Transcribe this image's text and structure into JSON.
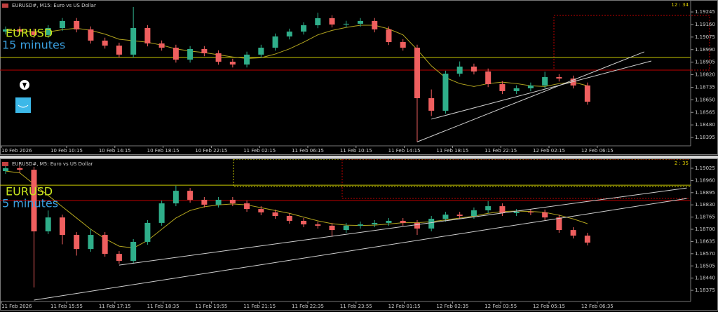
{
  "chart_data": [
    {
      "type": "candlestick",
      "title": "EURUSD#, M15: Euro vs US Dollar",
      "clock": "12 : 34",
      "symbol": "EURUSD",
      "period": "15 minutes",
      "ylim": [
        1.18343,
        1.19288
      ],
      "yticks": [
        1.19245,
        {
          "value": 1.1916,
          "label": "1.19160"
        },
        1.19075,
        {
          "value": 1.1899,
          "label": "1.18990"
        },
        1.18905,
        {
          "value": 1.1882,
          "label": "1.18820"
        },
        1.18735,
        {
          "value": 1.1865,
          "label": "1.18650"
        },
        1.18565,
        {
          "value": 1.1848,
          "label": "1.18480"
        },
        1.18395
      ],
      "time_labels": [
        "10 Feb 2026",
        "10 Feb 10:15",
        "10 Feb 14:15",
        "10 Feb 18:15",
        "10 Feb 22:15",
        "11 Feb 02:15",
        "11 Feb 06:15",
        "11 Feb 10:15",
        "11 Feb 14:15",
        "11 Feb 18:15",
        "11 Feb 22:15",
        "12 Feb 02:15",
        "12 Feb 06:15"
      ],
      "up_color": "#2fae8a",
      "down_color": "#ef5f5f",
      "ma_color": "#b3a51e",
      "ohlc": [
        [
          1.19112,
          1.19147,
          1.19092,
          1.19127
        ],
        [
          1.19127,
          1.19147,
          1.19092,
          1.19112
        ],
        [
          1.19112,
          1.19132,
          1.19069,
          1.19089
        ],
        [
          1.19089,
          1.19156,
          1.19069,
          1.19136
        ],
        [
          1.19136,
          1.19204,
          1.19116,
          1.19184
        ],
        [
          1.19184,
          1.19204,
          1.19107,
          1.19127
        ],
        [
          1.19127,
          1.19147,
          1.19031,
          1.19051
        ],
        [
          1.19051,
          1.19071,
          1.18997,
          1.19017
        ],
        [
          1.19017,
          1.19037,
          1.18936,
          1.18956
        ],
        [
          1.18956,
          1.19279,
          1.18936,
          1.19136
        ],
        [
          1.19136,
          1.19156,
          1.19012,
          1.19032
        ],
        [
          1.19032,
          1.19052,
          1.18983,
          1.19003
        ],
        [
          1.19003,
          1.19023,
          1.18902,
          1.18922
        ],
        [
          1.18922,
          1.19014,
          1.18902,
          1.18994
        ],
        [
          1.18994,
          1.19014,
          1.18945,
          1.18965
        ],
        [
          1.18965,
          1.18985,
          1.18888,
          1.18908
        ],
        [
          1.18908,
          1.18928,
          1.18869,
          1.18889
        ],
        [
          1.18889,
          1.18976,
          1.18869,
          1.18956
        ],
        [
          1.18956,
          1.19023,
          1.18936,
          1.19003
        ],
        [
          1.19003,
          1.19099,
          1.18983,
          1.19079
        ],
        [
          1.19079,
          1.19132,
          1.19059,
          1.19112
        ],
        [
          1.19112,
          1.19175,
          1.19092,
          1.19155
        ],
        [
          1.19155,
          1.1924,
          1.19135,
          1.19203
        ],
        [
          1.19203,
          1.19223,
          1.1914,
          1.1916
        ],
        [
          1.1916,
          1.19185,
          1.1914,
          1.19165
        ],
        [
          1.19165,
          1.19204,
          1.19145,
          1.19184
        ],
        [
          1.19184,
          1.19204,
          1.19107,
          1.19127
        ],
        [
          1.19127,
          1.19147,
          1.19021,
          1.19041
        ],
        [
          1.19041,
          1.19061,
          1.18983,
          1.19003
        ],
        [
          1.19003,
          1.19023,
          1.18365,
          1.18661
        ],
        [
          1.18661,
          1.1872,
          1.1854,
          1.18576
        ],
        [
          1.18576,
          1.18847,
          1.18556,
          1.18827
        ],
        [
          1.18827,
          1.1891,
          1.18807,
          1.18875
        ],
        [
          1.18875,
          1.18895,
          1.18822,
          1.18842
        ],
        [
          1.18842,
          1.18862,
          1.18736,
          1.18756
        ],
        [
          1.18756,
          1.18776,
          1.18689,
          1.18709
        ],
        [
          1.18709,
          1.18748,
          1.18689,
          1.18728
        ],
        [
          1.18728,
          1.18767,
          1.18708,
          1.18747
        ],
        [
          1.18747,
          1.1884,
          1.18727,
          1.18804
        ],
        [
          1.18804,
          1.18824,
          1.18774,
          1.18794
        ],
        [
          1.18794,
          1.18814,
          1.18727,
          1.18747
        ],
        [
          1.18747,
          1.18767,
          1.18617,
          1.18637
        ]
      ],
      "ma": [
        1.1912,
        1.19118,
        1.19112,
        1.1911,
        1.19125,
        1.19135,
        1.1912,
        1.19095,
        1.1906,
        1.1905,
        1.1904,
        1.1902,
        1.18995,
        1.1898,
        1.1897,
        1.18955,
        1.1894,
        1.1893,
        1.18935,
        1.1896,
        1.18995,
        1.1904,
        1.1909,
        1.1912,
        1.1914,
        1.19155,
        1.19155,
        1.1913,
        1.1909,
        1.1899,
        1.1888,
        1.188,
        1.1876,
        1.1874,
        1.1876,
        1.1877,
        1.1876,
        1.18745,
        1.1874,
        1.1876,
        1.1877,
        1.18745
      ],
      "levels": [
        {
          "value": 1.18937,
          "color": "#c8c800"
        },
        {
          "value": 1.18851,
          "color": "#c00000"
        }
      ],
      "trendlines": [
        {
          "x": [
            29,
            45
          ],
          "y": [
            1.18365,
            1.18975
          ],
          "color": "#d0d0d0"
        },
        {
          "x": [
            30,
            45.5
          ],
          "y": [
            1.18519,
            1.18913
          ],
          "color": "#d0d0d0"
        }
      ]
    },
    {
      "type": "candlestick",
      "title": "EURUSD#, M5: Euro vs US Dollar",
      "clock": "2 : 35",
      "symbol": "EURUSD",
      "period": "5 minutes",
      "ylim": [
        1.18323,
        1.19051
      ],
      "yticks": [
        1.19025,
        {
          "value": 1.1896,
          "label": "1.18960"
        },
        1.18895,
        {
          "value": 1.1883,
          "label": "1.18830"
        },
        1.18765,
        {
          "value": 1.187,
          "label": "1.18700"
        },
        1.18635,
        {
          "value": 1.1857,
          "label": "1.18570"
        },
        1.18505,
        {
          "value": 1.1844,
          "label": "1.18440"
        },
        1.18375
      ],
      "time_labels": [
        "11 Feb 2026",
        "11 Feb 15:55",
        "11 Feb 17:15",
        "11 Feb 18:35",
        "11 Feb 19:55",
        "11 Feb 21:15",
        "11 Feb 22:35",
        "11 Feb 23:55",
        "12 Feb 01:15",
        "12 Feb 02:35",
        "12 Feb 03:55",
        "12 Feb 05:15",
        "12 Feb 06:35"
      ],
      "up_color": "#2fae8a",
      "down_color": "#ef5f5f",
      "ma_color": "#b3a51e",
      "ohlc": [
        [
          1.1901,
          1.1904,
          1.18995,
          1.19025
        ],
        [
          1.19025,
          1.1904,
          1.19002,
          1.19017
        ],
        [
          1.19017,
          1.19032,
          1.1839,
          1.18689
        ],
        [
          1.18689,
          1.188,
          1.18674,
          1.18763
        ],
        [
          1.18763,
          1.18778,
          1.1862,
          1.1867
        ],
        [
          1.1867,
          1.18685,
          1.1856,
          1.18595
        ],
        [
          1.18595,
          1.187,
          1.1858,
          1.1867
        ],
        [
          1.1867,
          1.18685,
          1.18554,
          1.18569
        ],
        [
          1.18569,
          1.18584,
          1.18517,
          1.18532
        ],
        [
          1.18532,
          1.18648,
          1.18517,
          1.18633
        ],
        [
          1.18633,
          1.18749,
          1.18618,
          1.18734
        ],
        [
          1.18734,
          1.18853,
          1.18719,
          1.18838
        ],
        [
          1.18838,
          1.18932,
          1.18823,
          1.18905
        ],
        [
          1.18905,
          1.1892,
          1.18842,
          1.18857
        ],
        [
          1.18857,
          1.18872,
          1.18816,
          1.18831
        ],
        [
          1.18831,
          1.18872,
          1.18816,
          1.18857
        ],
        [
          1.18857,
          1.18872,
          1.18823,
          1.18838
        ],
        [
          1.18838,
          1.18853,
          1.18793,
          1.18808
        ],
        [
          1.18808,
          1.18823,
          1.18775,
          1.1879
        ],
        [
          1.1879,
          1.18805,
          1.18756,
          1.18771
        ],
        [
          1.18771,
          1.18786,
          1.1873,
          1.18745
        ],
        [
          1.18745,
          1.1876,
          1.18711,
          1.18726
        ],
        [
          1.18726,
          1.18741,
          1.18704,
          1.18719
        ],
        [
          1.18719,
          1.18734,
          1.1866,
          1.18696
        ],
        [
          1.18696,
          1.18734,
          1.18681,
          1.18719
        ],
        [
          1.18719,
          1.18741,
          1.18704,
          1.18726
        ],
        [
          1.18726,
          1.18749,
          1.18711,
          1.18734
        ],
        [
          1.18734,
          1.1876,
          1.18719,
          1.18745
        ],
        [
          1.18745,
          1.1876,
          1.18719,
          1.18734
        ],
        [
          1.18734,
          1.18749,
          1.1867,
          1.18704
        ],
        [
          1.18704,
          1.18771,
          1.18689,
          1.18756
        ],
        [
          1.18756,
          1.18793,
          1.18741,
          1.18778
        ],
        [
          1.18778,
          1.18793,
          1.18756,
          1.18771
        ],
        [
          1.18771,
          1.18816,
          1.18756,
          1.18801
        ],
        [
          1.18801,
          1.1885,
          1.18786,
          1.18823
        ],
        [
          1.18823,
          1.18838,
          1.18771,
          1.18786
        ],
        [
          1.18786,
          1.18808,
          1.18771,
          1.18793
        ],
        [
          1.18793,
          1.18808,
          1.18775,
          1.1879
        ],
        [
          1.1879,
          1.18805,
          1.18748,
          1.18763
        ],
        [
          1.18763,
          1.18778,
          1.18681,
          1.18696
        ],
        [
          1.18696,
          1.18711,
          1.18651,
          1.18666
        ],
        [
          1.18666,
          1.18681,
          1.18614,
          1.18629
        ]
      ],
      "ma": [
        1.1901,
        1.19,
        1.1894,
        1.1888,
        1.1882,
        1.1876,
        1.187,
        1.1865,
        1.1861,
        1.186,
        1.1864,
        1.187,
        1.1876,
        1.188,
        1.1882,
        1.1883,
        1.18835,
        1.1883,
        1.18815,
        1.188,
        1.18785,
        1.18765,
        1.18745,
        1.1873,
        1.18722,
        1.1872,
        1.18722,
        1.18728,
        1.18735,
        1.18735,
        1.1874,
        1.1875,
        1.1876,
        1.1877,
        1.18785,
        1.18795,
        1.18797,
        1.18795,
        1.1879,
        1.18775,
        1.18755,
        1.1873
      ],
      "levels": [
        {
          "value": 1.18935,
          "color": "#c8c800"
        },
        {
          "value": 1.18853,
          "color": "#c00000"
        }
      ],
      "trendlines": [
        {
          "x": [
            2,
            48
          ],
          "y": [
            1.18323,
            1.18864
          ],
          "color": "#d0d0d0"
        },
        {
          "x": [
            8,
            48
          ],
          "y": [
            1.18509,
            1.1892
          ],
          "color": "#d0d0d0"
        }
      ]
    }
  ]
}
